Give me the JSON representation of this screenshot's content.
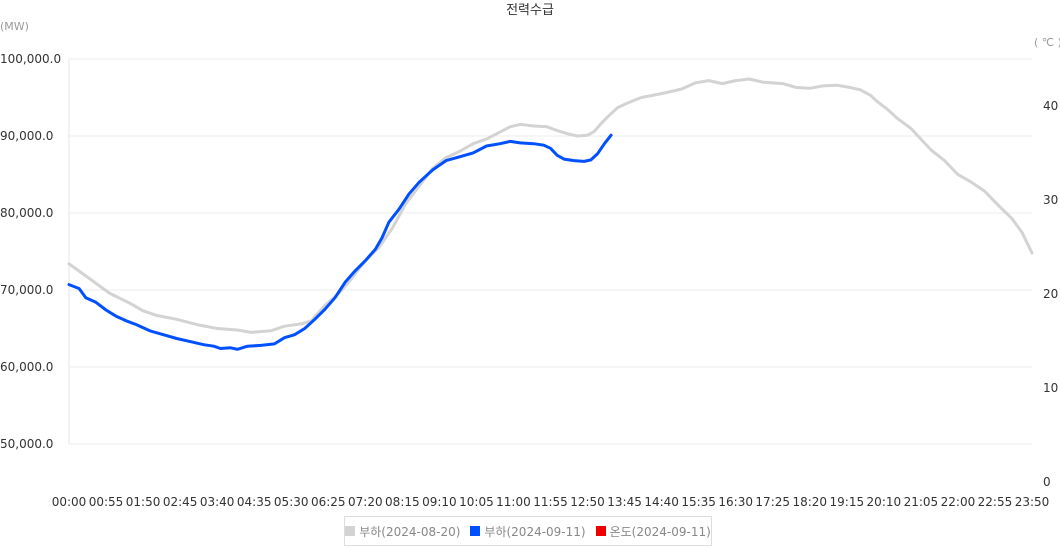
{
  "chart_data": {
    "type": "line",
    "title": "전력수급",
    "ylabel_left": "(MW)",
    "ylabel_right": "( ℃ )",
    "ylim_left": [
      50000,
      100000
    ],
    "ylim_right": [
      0,
      45
    ],
    "yticks_left": [
      "100,000.0",
      "90,000.0",
      "80,000.0",
      "70,000.0",
      "60,000.0",
      "50,000.0"
    ],
    "yticks_left_values": [
      100000,
      90000,
      80000,
      70000,
      60000,
      50000
    ],
    "yticks_right": [
      "40",
      "30",
      "20",
      "10",
      "0"
    ],
    "yticks_right_values": [
      40,
      30,
      20,
      10,
      0
    ],
    "grid": true,
    "legend_position": "bottom",
    "x_ticks": [
      "00:00",
      "00:55",
      "01:50",
      "02:45",
      "03:40",
      "04:35",
      "05:30",
      "06:25",
      "07:20",
      "08:15",
      "09:10",
      "10:05",
      "11:00",
      "11:55",
      "12:50",
      "13:45",
      "14:40",
      "15:35",
      "16:30",
      "17:25",
      "18:20",
      "19:15",
      "20:10",
      "21:05",
      "22:00",
      "22:55",
      "23:50"
    ],
    "x_range_minutes": [
      0,
      1430
    ],
    "series": [
      {
        "name": "부하(2024-08-20)",
        "color": "#d3d3d3",
        "axis": "left",
        "points": [
          [
            0,
            73400
          ],
          [
            30,
            71500
          ],
          [
            60,
            69600
          ],
          [
            90,
            68300
          ],
          [
            110,
            67300
          ],
          [
            130,
            66700
          ],
          [
            160,
            66200
          ],
          [
            190,
            65500
          ],
          [
            220,
            65000
          ],
          [
            250,
            64800
          ],
          [
            270,
            64500
          ],
          [
            300,
            64700
          ],
          [
            320,
            65300
          ],
          [
            345,
            65600
          ],
          [
            360,
            66000
          ],
          [
            380,
            68000
          ],
          [
            400,
            69500
          ],
          [
            420,
            71500
          ],
          [
            440,
            73800
          ],
          [
            460,
            75500
          ],
          [
            480,
            78000
          ],
          [
            500,
            81200
          ],
          [
            520,
            83500
          ],
          [
            540,
            85800
          ],
          [
            560,
            87200
          ],
          [
            580,
            88000
          ],
          [
            600,
            89000
          ],
          [
            620,
            89600
          ],
          [
            640,
            90500
          ],
          [
            655,
            91200
          ],
          [
            670,
            91500
          ],
          [
            690,
            91300
          ],
          [
            710,
            91200
          ],
          [
            725,
            90700
          ],
          [
            740,
            90300
          ],
          [
            755,
            90000
          ],
          [
            770,
            90100
          ],
          [
            780,
            90600
          ],
          [
            790,
            91600
          ],
          [
            800,
            92500
          ],
          [
            815,
            93700
          ],
          [
            830,
            94300
          ],
          [
            850,
            95000
          ],
          [
            880,
            95500
          ],
          [
            910,
            96100
          ],
          [
            930,
            96900
          ],
          [
            950,
            97200
          ],
          [
            970,
            96800
          ],
          [
            990,
            97200
          ],
          [
            1010,
            97400
          ],
          [
            1030,
            97000
          ],
          [
            1060,
            96800
          ],
          [
            1080,
            96300
          ],
          [
            1100,
            96200
          ],
          [
            1120,
            96500
          ],
          [
            1140,
            96600
          ],
          [
            1160,
            96300
          ],
          [
            1175,
            96000
          ],
          [
            1190,
            95300
          ],
          [
            1200,
            94500
          ],
          [
            1215,
            93500
          ],
          [
            1230,
            92300
          ],
          [
            1250,
            91000
          ],
          [
            1265,
            89600
          ],
          [
            1280,
            88200
          ],
          [
            1300,
            86800
          ],
          [
            1320,
            85000
          ],
          [
            1340,
            84000
          ],
          [
            1360,
            82800
          ],
          [
            1380,
            81000
          ],
          [
            1400,
            79300
          ],
          [
            1415,
            77500
          ],
          [
            1430,
            74800
          ]
        ]
      },
      {
        "name": "부하(2024-09-11)",
        "color": "#0050ff",
        "axis": "left",
        "points": [
          [
            0,
            70700
          ],
          [
            15,
            70200
          ],
          [
            25,
            69000
          ],
          [
            40,
            68400
          ],
          [
            55,
            67400
          ],
          [
            70,
            66600
          ],
          [
            85,
            66000
          ],
          [
            100,
            65500
          ],
          [
            120,
            64700
          ],
          [
            140,
            64200
          ],
          [
            160,
            63700
          ],
          [
            180,
            63300
          ],
          [
            200,
            62900
          ],
          [
            215,
            62700
          ],
          [
            225,
            62400
          ],
          [
            240,
            62500
          ],
          [
            250,
            62300
          ],
          [
            265,
            62700
          ],
          [
            285,
            62800
          ],
          [
            305,
            63000
          ],
          [
            320,
            63800
          ],
          [
            335,
            64200
          ],
          [
            350,
            65000
          ],
          [
            365,
            66200
          ],
          [
            380,
            67500
          ],
          [
            395,
            69000
          ],
          [
            410,
            71000
          ],
          [
            425,
            72500
          ],
          [
            440,
            73800
          ],
          [
            455,
            75300
          ],
          [
            465,
            76800
          ],
          [
            475,
            78800
          ],
          [
            490,
            80500
          ],
          [
            505,
            82500
          ],
          [
            520,
            84000
          ],
          [
            540,
            85600
          ],
          [
            560,
            86800
          ],
          [
            580,
            87300
          ],
          [
            600,
            87800
          ],
          [
            620,
            88700
          ],
          [
            640,
            89000
          ],
          [
            655,
            89300
          ],
          [
            670,
            89100
          ],
          [
            690,
            89000
          ],
          [
            705,
            88800
          ],
          [
            715,
            88400
          ],
          [
            725,
            87500
          ],
          [
            735,
            87000
          ],
          [
            750,
            86800
          ],
          [
            765,
            86700
          ],
          [
            775,
            86900
          ],
          [
            785,
            87700
          ],
          [
            795,
            89000
          ],
          [
            805,
            90100
          ]
        ]
      },
      {
        "name": "온도(2024-09-11)",
        "color": "#ee0000",
        "axis": "right",
        "points": []
      }
    ]
  }
}
